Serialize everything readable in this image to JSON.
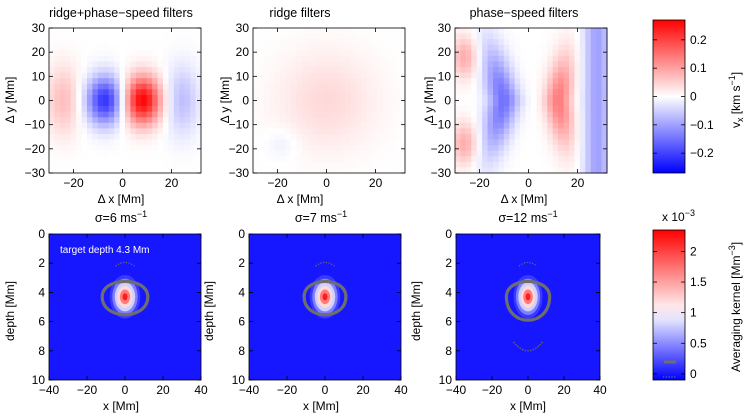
{
  "chart_data": [
    {
      "type": "heatmap",
      "title": "ridge+phase−speed filters",
      "xlabel": "Δ x [Mm]",
      "ylabel": "Δ y [Mm]",
      "xlim": [
        -30,
        32
      ],
      "ylim": [
        -30,
        30
      ],
      "xticks": [
        "−20",
        "0",
        "20"
      ],
      "yticks": [
        "30",
        "20",
        "10",
        "0",
        "−10",
        "−20",
        "−30"
      ],
      "pattern": "dipole",
      "features": [
        {
          "kind": "negative lobe",
          "x": -7,
          "y": 0,
          "value": -0.22
        },
        {
          "kind": "positive lobe",
          "x": 8,
          "y": 0,
          "value": 0.27
        }
      ]
    },
    {
      "type": "heatmap",
      "title": "ridge filters",
      "xlabel": "Δ x [Mm]",
      "ylabel": "Δ y [Mm]",
      "xlim": [
        -30,
        32
      ],
      "ylim": [
        -30,
        30
      ],
      "xticks": [
        "−20",
        "0",
        "20"
      ],
      "yticks": [
        "30",
        "20",
        "10",
        "0",
        "−10",
        "−20",
        "−30"
      ],
      "pattern": "weak",
      "features": [
        {
          "kind": "weak positive",
          "x": 0,
          "y": 0,
          "value": 0.04
        }
      ]
    },
    {
      "type": "heatmap",
      "title": "phase−speed filters",
      "xlabel": "Δ x [Mm]",
      "ylabel": "Δ y [Mm]",
      "xlim": [
        -30,
        32
      ],
      "ylim": [
        -30,
        30
      ],
      "xticks": [
        "−20",
        "0",
        "20"
      ],
      "yticks": [
        "30",
        "20",
        "10",
        "0",
        "−10",
        "−20",
        "−30"
      ],
      "pattern": "bands",
      "features": [
        {
          "kind": "negative band",
          "x": -10,
          "y": 0,
          "value": -0.15
        },
        {
          "kind": "positive band",
          "x": 12,
          "y": 0,
          "value": 0.14
        }
      ]
    },
    {
      "type": "heatmap",
      "title": "σ=6 ms⁻¹",
      "annotation": "target depth 4.3 Mm",
      "xlabel": "x [Mm]",
      "ylabel": "depth [Mm]",
      "xlim": [
        -40,
        40
      ],
      "ylim": [
        0,
        10
      ],
      "xticks": [
        "−40",
        "−20",
        "0",
        "20",
        "40"
      ],
      "yticks": [
        "0",
        "2",
        "4",
        "6",
        "8",
        "10"
      ],
      "peak": {
        "x": 0,
        "depth": 4.3,
        "value": 2.2
      },
      "contour": {
        "x_half_width": 12,
        "depth_top": 2.9,
        "depth_bottom": 5.8
      },
      "lower_dots": false
    },
    {
      "type": "heatmap",
      "title": "σ=7 ms⁻¹",
      "xlabel": "x [Mm]",
      "ylabel": "depth [Mm]",
      "xlim": [
        -40,
        40
      ],
      "ylim": [
        0,
        10
      ],
      "xticks": [
        "−40",
        "−20",
        "0",
        "20",
        "40"
      ],
      "yticks": [
        "0",
        "2",
        "4",
        "6",
        "8",
        "10"
      ],
      "peak": {
        "x": 0,
        "depth": 4.3,
        "value": 2.2
      },
      "contour": {
        "x_half_width": 11,
        "depth_top": 2.9,
        "depth_bottom": 5.8
      },
      "lower_dots": false
    },
    {
      "type": "heatmap",
      "title": "σ=12 ms⁻¹",
      "xlabel": "x [Mm]",
      "ylabel": "depth [Mm]",
      "xlim": [
        -40,
        40
      ],
      "ylim": [
        0,
        10
      ],
      "xticks": [
        "−40",
        "−20",
        "0",
        "20",
        "40"
      ],
      "yticks": [
        "0",
        "2",
        "4",
        "6",
        "8",
        "10"
      ],
      "peak": {
        "x": 0,
        "depth": 4.3,
        "value": 2.2
      },
      "contour": {
        "x_half_width": 12,
        "depth_top": 2.9,
        "depth_bottom": 6.3
      },
      "lower_dots": true
    }
  ],
  "colorbars": {
    "velocity": {
      "label": "v",
      "label_sub": "x",
      "label_unit": " [km s",
      "label_exp": "−1",
      "label_close": "]",
      "range": [
        -0.27,
        0.27
      ],
      "ticks": [
        {
          "value": 0.2,
          "label": "0.2"
        },
        {
          "value": 0.1,
          "label": "0.1"
        },
        {
          "value": 0,
          "label": "0"
        },
        {
          "value": -0.1,
          "label": "−0.1"
        },
        {
          "value": -0.2,
          "label": "−0.2"
        }
      ]
    },
    "kernel": {
      "label": "Averaging kernel [Mm",
      "label_exp": "−3",
      "label_close": "]",
      "scale_prefix": "x 10",
      "scale_exp": "−3",
      "range": [
        -0.1,
        2.35
      ],
      "ticks": [
        {
          "value": 2,
          "label": "2"
        },
        {
          "value": 1.5,
          "label": "1.5"
        },
        {
          "value": 1,
          "label": "1"
        },
        {
          "value": 0.5,
          "label": "0.5"
        },
        {
          "value": 0,
          "label": "0"
        }
      ]
    }
  },
  "colors": {
    "blue": "#0000ff",
    "white": "#ffffff",
    "red": "#ff0000",
    "contour": "#6e6e6e"
  }
}
